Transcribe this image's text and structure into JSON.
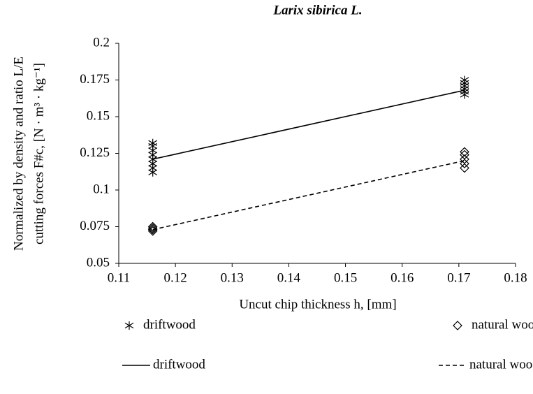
{
  "chart_data": {
    "type": "scatter",
    "title": "Larix sibirica L.",
    "x_label": "Uncut chip thickness h, [mm]",
    "y_label": [
      "Normalized by density and ratio L/E",
      "cutting forces F#c,  [N · m³ · kg⁻¹]"
    ],
    "xlim": [
      0.11,
      0.18
    ],
    "xticks": [
      0.11,
      0.12,
      0.13,
      0.14,
      0.15,
      0.16,
      0.17,
      0.18
    ],
    "ylim": [
      0.05,
      0.2
    ],
    "yticks": [
      0.05,
      0.075,
      0.1,
      0.125,
      0.15,
      0.175,
      0.2
    ],
    "grid": false,
    "series": [
      {
        "name": "driftwood",
        "mode": "markers",
        "marker": "asterisk",
        "color": "#000000",
        "x": [
          0.116,
          0.116,
          0.116,
          0.116,
          0.116,
          0.116,
          0.116,
          0.116,
          0.171,
          0.171,
          0.171,
          0.171,
          0.171,
          0.171
        ],
        "values": [
          0.112,
          0.115,
          0.118,
          0.121,
          0.124,
          0.127,
          0.13,
          0.132,
          0.165,
          0.167,
          0.169,
          0.171,
          0.173,
          0.175
        ]
      },
      {
        "name": "natural wood",
        "mode": "markers",
        "marker": "diamond",
        "color": "#000000",
        "x": [
          0.116,
          0.116,
          0.116,
          0.116,
          0.171,
          0.171,
          0.171,
          0.171,
          0.171
        ],
        "values": [
          0.072,
          0.073,
          0.074,
          0.075,
          0.115,
          0.118,
          0.121,
          0.124,
          0.126
        ]
      },
      {
        "name": "driftwood",
        "mode": "line",
        "dashed": false,
        "color": "#000000",
        "x": [
          0.116,
          0.171
        ],
        "values": [
          0.121,
          0.168
        ]
      },
      {
        "name": "natural wood",
        "mode": "line",
        "dashed": true,
        "color": "#000000",
        "x": [
          0.116,
          0.171
        ],
        "values": [
          0.073,
          0.12
        ]
      }
    ]
  }
}
